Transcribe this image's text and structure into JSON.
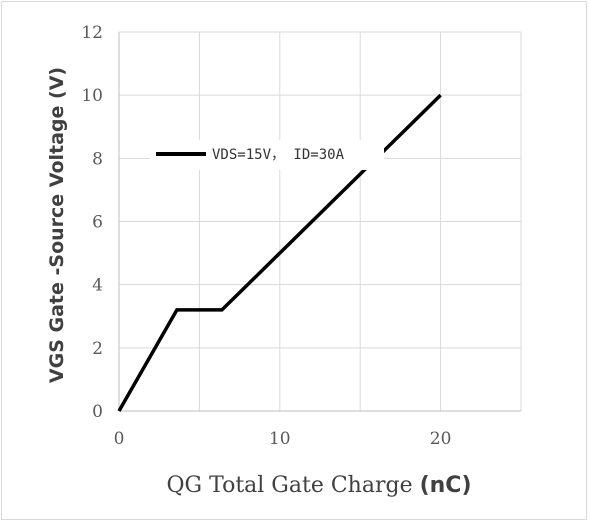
{
  "chart_data": {
    "type": "line",
    "title": "",
    "xlabel_main": "QG Total Gate Charge ",
    "xlabel_unit": "(nC)",
    "ylabel": "VGS Gate -Source Voltage (V)",
    "xlim": [
      0,
      25
    ],
    "ylim": [
      0,
      12
    ],
    "x_ticks": [
      0,
      10,
      20
    ],
    "x_tick_labels": [
      "0",
      "10",
      "20"
    ],
    "y_ticks": [
      0,
      2,
      4,
      6,
      8,
      10,
      12
    ],
    "y_tick_labels": [
      "0",
      "2",
      "4",
      "6",
      "8",
      "10",
      "12"
    ],
    "grid": true,
    "legend_position": "upper-left-inside",
    "series": [
      {
        "name": "VDS=15V， ID=30A",
        "color": "#000000",
        "x": [
          0,
          3.6,
          6.4,
          20
        ],
        "y": [
          0,
          3.2,
          3.2,
          10
        ]
      }
    ]
  }
}
